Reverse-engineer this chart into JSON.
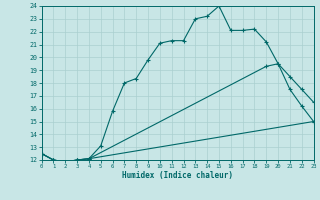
{
  "xlabel": "Humidex (Indice chaleur)",
  "xlim": [
    0,
    23
  ],
  "ylim": [
    12,
    24
  ],
  "xticks": [
    0,
    1,
    2,
    3,
    4,
    5,
    6,
    7,
    8,
    9,
    10,
    11,
    12,
    13,
    14,
    15,
    16,
    17,
    18,
    19,
    20,
    21,
    22,
    23
  ],
  "yticks": [
    12,
    13,
    14,
    15,
    16,
    17,
    18,
    19,
    20,
    21,
    22,
    23,
    24
  ],
  "bg_color": "#c8e6e6",
  "line_color": "#006868",
  "grid_color": "#aad0d0",
  "curve1_x": [
    0,
    1,
    2,
    3,
    4,
    5,
    6,
    7,
    8,
    9,
    10,
    11,
    12,
    13,
    14,
    15,
    16,
    17,
    18,
    19,
    20,
    21,
    22,
    23
  ],
  "curve1_y": [
    12.5,
    12.0,
    11.85,
    12.0,
    12.1,
    13.1,
    15.8,
    18.0,
    18.35,
    19.8,
    21.1,
    21.3,
    21.3,
    23.0,
    23.2,
    24.0,
    22.1,
    22.1,
    22.2,
    21.2,
    19.5,
    17.5,
    16.2,
    15.0
  ],
  "curve2_x": [
    0,
    1,
    2,
    3,
    4,
    19,
    20,
    21,
    22,
    23
  ],
  "curve2_y": [
    12.5,
    12.0,
    11.85,
    12.0,
    12.1,
    19.3,
    19.5,
    18.5,
    17.5,
    16.5
  ],
  "curve3_x": [
    0,
    1,
    2,
    3,
    4,
    23
  ],
  "curve3_y": [
    12.5,
    12.0,
    11.85,
    12.0,
    12.1,
    15.0
  ]
}
